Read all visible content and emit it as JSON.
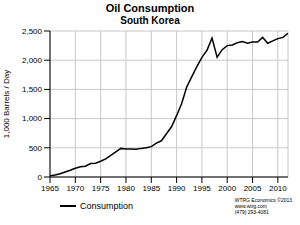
{
  "chart_data": {
    "type": "line",
    "title": "Oil Consumption",
    "subtitle": "South Korea",
    "y_label": "1,000 Barrels / Day",
    "x": [
      1965,
      1966,
      1967,
      1968,
      1969,
      1970,
      1971,
      1972,
      1973,
      1974,
      1975,
      1976,
      1977,
      1978,
      1979,
      1980,
      1981,
      1982,
      1983,
      1984,
      1985,
      1986,
      1987,
      1988,
      1989,
      1990,
      1991,
      1992,
      1993,
      1994,
      1995,
      1996,
      1997,
      1998,
      1999,
      2000,
      2001,
      2002,
      2003,
      2004,
      2005,
      2006,
      2007,
      2008,
      2009,
      2010,
      2011,
      2012
    ],
    "series": [
      {
        "name": "Consumption",
        "color": "#000000",
        "values": [
          20,
          35,
          55,
          85,
          115,
          150,
          175,
          185,
          230,
          235,
          270,
          310,
          370,
          430,
          490,
          480,
          480,
          475,
          490,
          500,
          520,
          580,
          620,
          740,
          860,
          1050,
          1260,
          1540,
          1720,
          1890,
          2050,
          2170,
          2380,
          2050,
          2180,
          2250,
          2260,
          2300,
          2320,
          2290,
          2310,
          2310,
          2390,
          2290,
          2330,
          2370,
          2390,
          2460
        ]
      }
    ],
    "xlim": [
      1965,
      2012
    ],
    "xticks": [
      1965,
      1970,
      1975,
      1980,
      1985,
      1990,
      1995,
      2000,
      2005,
      2010
    ],
    "ylim": [
      0,
      2500
    ],
    "yticks": [
      0,
      500,
      {
        "value": 1000,
        "label": "1,000"
      },
      {
        "value": 1500,
        "label": "1,500"
      },
      {
        "value": 2000,
        "label": "2,000"
      },
      {
        "value": 2500,
        "label": "2,500"
      }
    ],
    "grid": true,
    "legend": "bottom",
    "annotations": [
      "WTRG Economics ©2013",
      "www.wtrg.com",
      "(479) 293-4081"
    ]
  }
}
